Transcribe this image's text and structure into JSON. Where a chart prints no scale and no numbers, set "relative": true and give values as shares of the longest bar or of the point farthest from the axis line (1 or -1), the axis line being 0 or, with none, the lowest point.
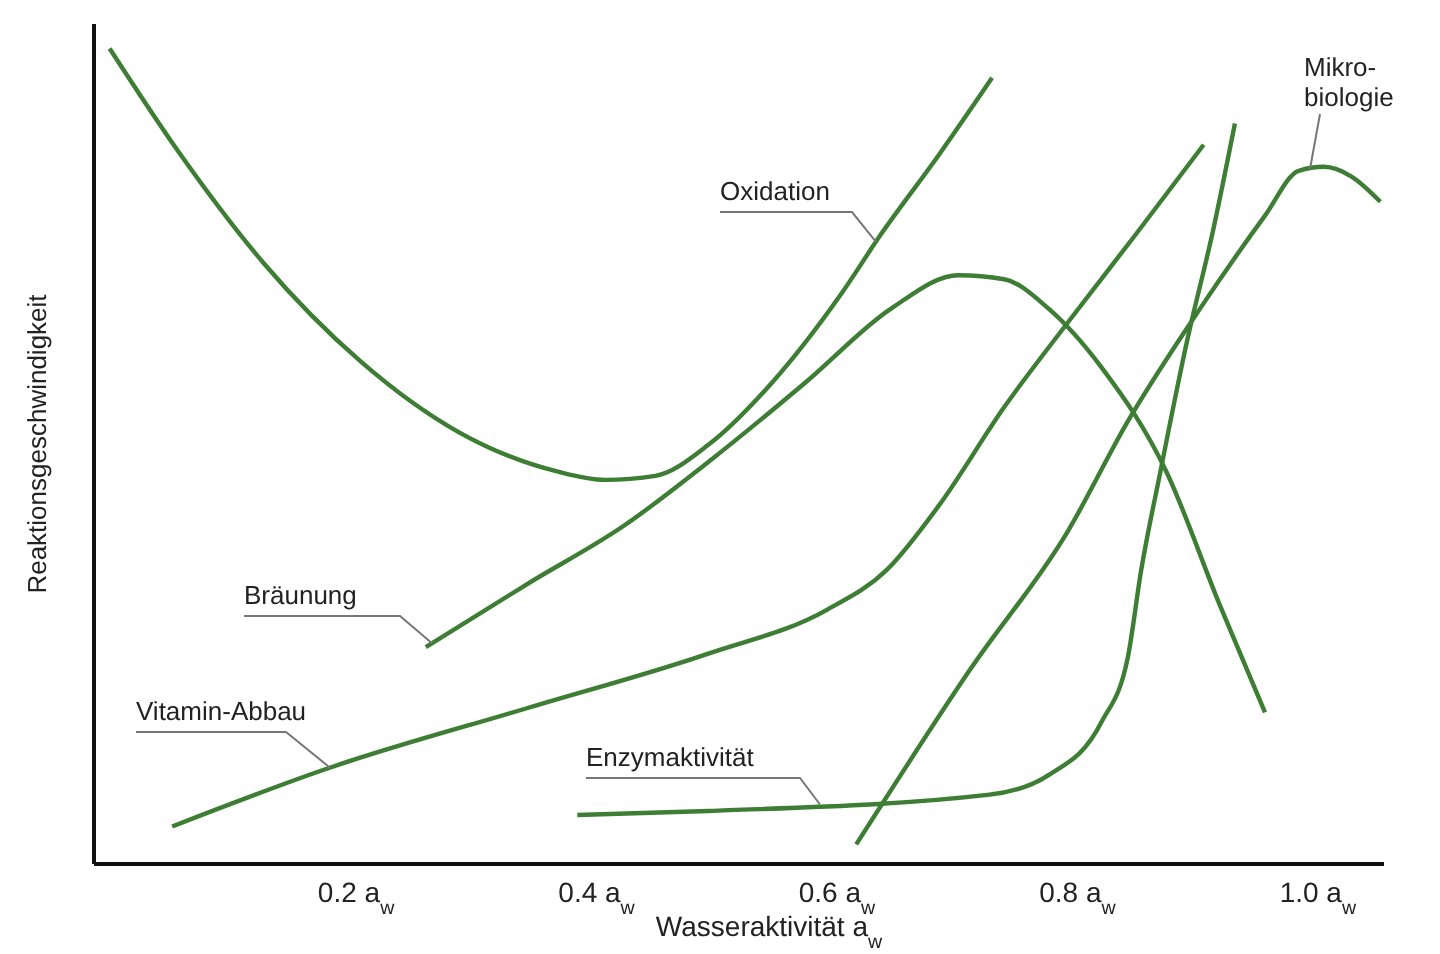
{
  "chart_data": {
    "type": "line",
    "relative": true,
    "xlabel": "Wasseraktivität a$_{w}$",
    "ylabel": "Reaktionsgeschwindigkeit",
    "xlim": [
      -0.018,
      1.055
    ],
    "xticks": [
      {
        "value": 0.2,
        "label": "0.2 a$_{w}$"
      },
      {
        "value": 0.4,
        "label": "0.4 a$_{w}$"
      },
      {
        "value": 0.6,
        "label": "0.6 a$_{w}$"
      },
      {
        "value": 0.8,
        "label": "0.8 a$_{w}$"
      },
      {
        "value": 1.0,
        "label": "1.0 a$_{w}$"
      }
    ],
    "series": [
      {
        "name": "Oxidation",
        "color": "#3d7d34",
        "x": [
          -0.005,
          0.052,
          0.123,
          0.204,
          0.286,
          0.368,
          0.407,
          0.449,
          0.493,
          0.547,
          0.603,
          0.637,
          0.685,
          0.729
        ],
        "values": [
          1.0,
          0.874,
          0.737,
          0.616,
          0.529,
          0.481,
          0.471,
          0.476,
          0.514,
          0.592,
          0.698,
          0.773,
          0.87,
          0.964
        ]
      },
      {
        "name": "Bräunung",
        "color": "#3d7d34",
        "x": [
          0.258,
          0.342,
          0.423,
          0.493,
          0.575,
          0.645,
          0.701,
          0.739,
          0.776,
          0.82,
          0.874,
          0.918,
          0.956
        ],
        "values": [
          0.266,
          0.343,
          0.415,
          0.493,
          0.592,
          0.681,
          0.722,
          0.717,
          0.681,
          0.609,
          0.481,
          0.319,
          0.186
        ]
      },
      {
        "name": "Vitamin-Abbau",
        "color": "#3d7d34",
        "x": [
          0.047,
          0.178,
          0.342,
          0.493,
          0.592,
          0.641,
          0.685,
          0.739,
          0.792,
          0.848,
          0.905
        ],
        "values": [
          0.046,
          0.118,
          0.191,
          0.258,
          0.312,
          0.36,
          0.44,
          0.56,
          0.664,
          0.771,
          0.882
        ]
      },
      {
        "name": "Enzymaktivität",
        "color": "#3d7d34",
        "x": [
          0.384,
          0.493,
          0.727,
          0.776,
          0.82,
          0.842,
          0.853,
          0.869,
          0.891,
          0.913,
          0.931
        ],
        "values": [
          0.06,
          0.065,
          0.085,
          0.109,
          0.174,
          0.254,
          0.36,
          0.481,
          0.64,
          0.778,
          0.908
        ]
      },
      {
        "name": "Mikro-\nbiologie",
        "color": "#3d7d34",
        "x": [
          0.616,
          0.711,
          0.792,
          0.842,
          0.902,
          0.956,
          0.984,
          1.005,
          1.028,
          1.052
        ],
        "values": [
          0.024,
          0.239,
          0.408,
          0.543,
          0.681,
          0.795,
          0.85,
          0.855,
          0.843,
          0.812
        ]
      }
    ]
  }
}
